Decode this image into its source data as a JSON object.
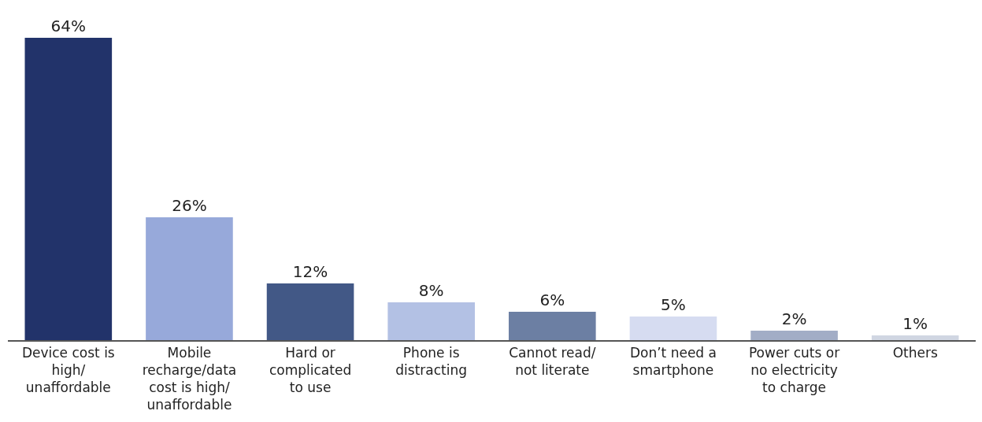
{
  "chart_data": {
    "type": "bar",
    "categories": [
      "Device cost is\nhigh/\nunaffordable",
      "Mobile\nrecharge/data\ncost is high/\nunaffordable",
      "Hard or\ncomplicated\nto use",
      "Phone is\ndistracting",
      "Cannot read/\nnot literate",
      "Don’t need a\nsmartphone",
      "Power cuts or\nno electricity\nto charge",
      "Others"
    ],
    "values": [
      64,
      26,
      12,
      8,
      6,
      5,
      2,
      1
    ],
    "value_labels": [
      "64%",
      "26%",
      "12%",
      "8%",
      "6%",
      "5%",
      "2%",
      "1%"
    ],
    "colors": [
      "#22336a",
      "#97a9da",
      "#425886",
      "#b3c1e4",
      "#6c7fa3",
      "#d6dcf1",
      "#a2adc6",
      "#d0d6e2"
    ]
  }
}
